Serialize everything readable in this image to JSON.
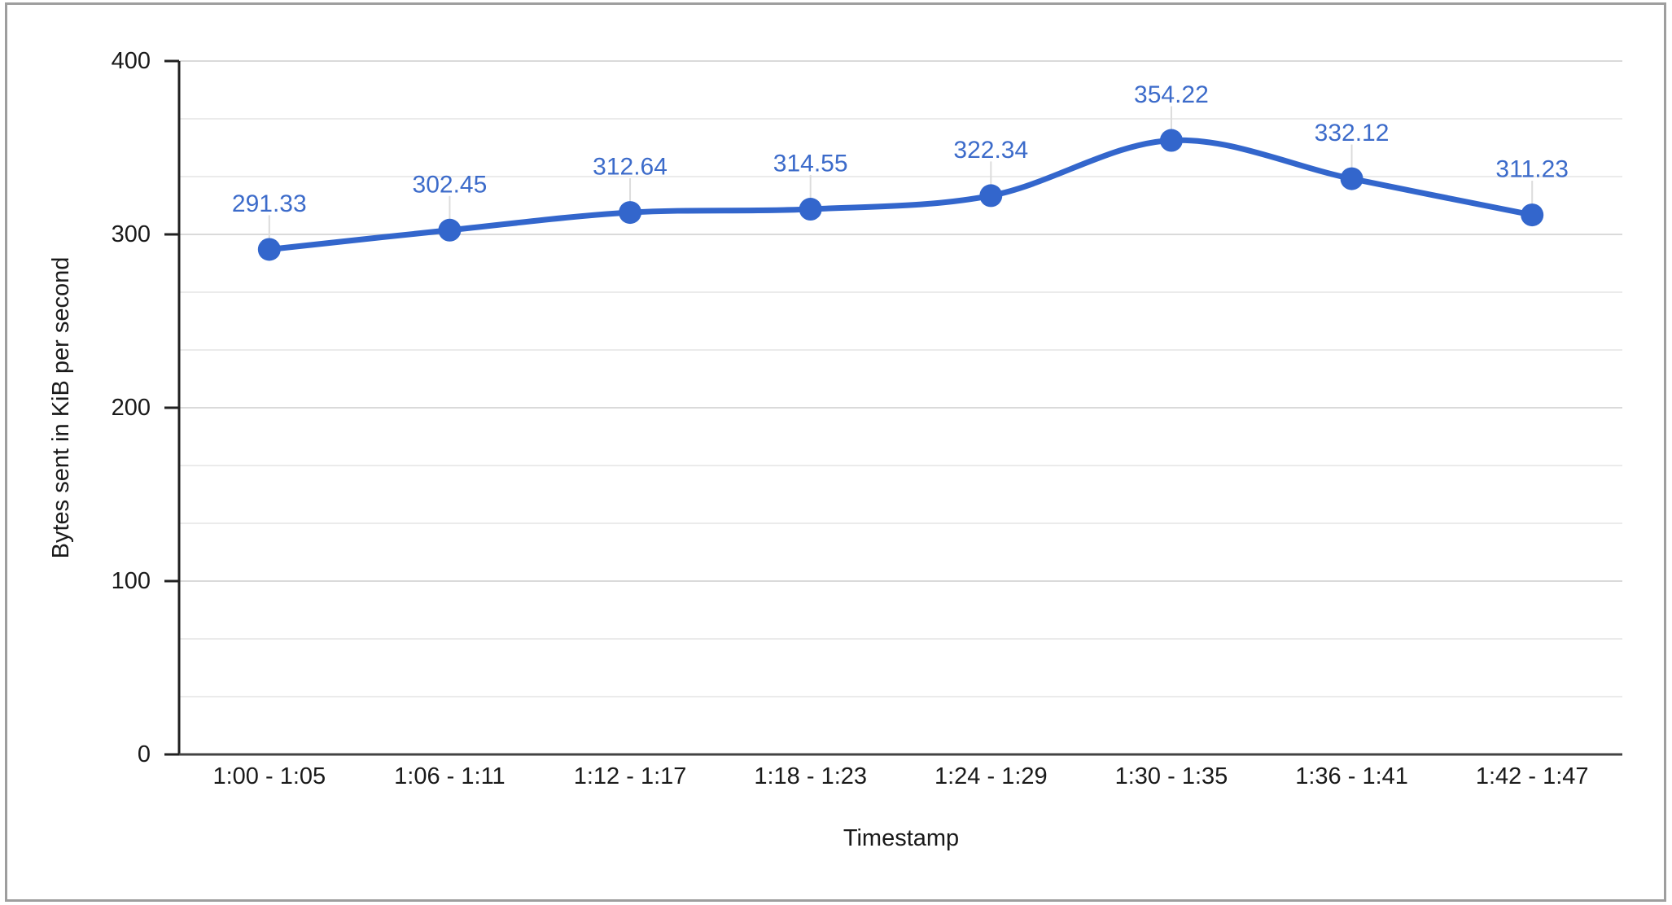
{
  "chart_data": {
    "type": "line",
    "smooth": true,
    "title": "",
    "xlabel": "Timestamp",
    "ylabel": "Bytes sent in KiB per second",
    "categories": [
      "1:00 - 1:05",
      "1:06 - 1:11",
      "1:12 - 1:17",
      "1:18 - 1:23",
      "1:24 - 1:29",
      "1:30 - 1:35",
      "1:36 - 1:41",
      "1:42 - 1:47"
    ],
    "values": [
      291.33,
      302.45,
      312.64,
      314.55,
      322.34,
      354.22,
      332.12,
      311.23
    ],
    "data_labels": [
      "291.33",
      "302.45",
      "312.64",
      "314.55",
      "322.34",
      "354.22",
      "332.12",
      "311.23"
    ],
    "data_labels_visible": true,
    "ylim": [
      0,
      400
    ],
    "yticks": [
      0,
      100,
      200,
      300,
      400
    ],
    "minor_gridlines_per_major": 2,
    "grid": "horizontal-only",
    "legend": "none",
    "colors": {
      "series": "#3366cc",
      "data_label": "#3c6bca",
      "axis_text": "#1a1a1a",
      "axis_line": "#212121",
      "baseline": "#424242",
      "gridline_major": "#dadada",
      "gridline_minor": "#ebebeb",
      "leader_line": "#dcdcdc",
      "window_border": "#9e9e9e"
    }
  }
}
